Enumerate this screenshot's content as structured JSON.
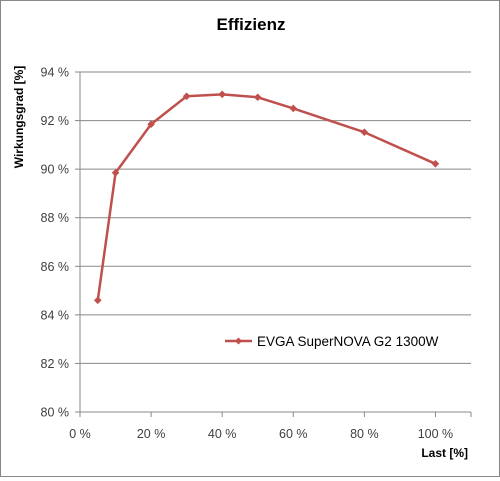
{
  "chart_data": {
    "type": "line",
    "title": "Effizienz",
    "xlabel": "Last [%]",
    "ylabel": "Wirkungsgrad [%]",
    "xlim": [
      0,
      110
    ],
    "ylim": [
      80,
      94
    ],
    "x_ticks": [
      0,
      20,
      40,
      60,
      80,
      100
    ],
    "y_ticks": [
      80,
      82,
      84,
      86,
      88,
      90,
      92,
      94
    ],
    "x_tick_labels": [
      "0 %",
      "20 %",
      "40 %",
      "60 %",
      "80 %",
      "100 %"
    ],
    "y_tick_labels": [
      "80 %",
      "82 %",
      "84 %",
      "86 %",
      "88 %",
      "90 %",
      "92 %",
      "94 %"
    ],
    "grid": "horizontal",
    "legend_position": "right",
    "series": [
      {
        "name": "EVGA SuperNOVA G2 1300W",
        "color": "#c0504d",
        "marker": "diamond",
        "x": [
          5,
          10,
          20,
          30,
          40,
          50,
          60,
          80,
          100
        ],
        "y": [
          84.6,
          89.85,
          91.85,
          93.0,
          93.08,
          92.96,
          92.5,
          91.52,
          90.22
        ]
      }
    ]
  }
}
